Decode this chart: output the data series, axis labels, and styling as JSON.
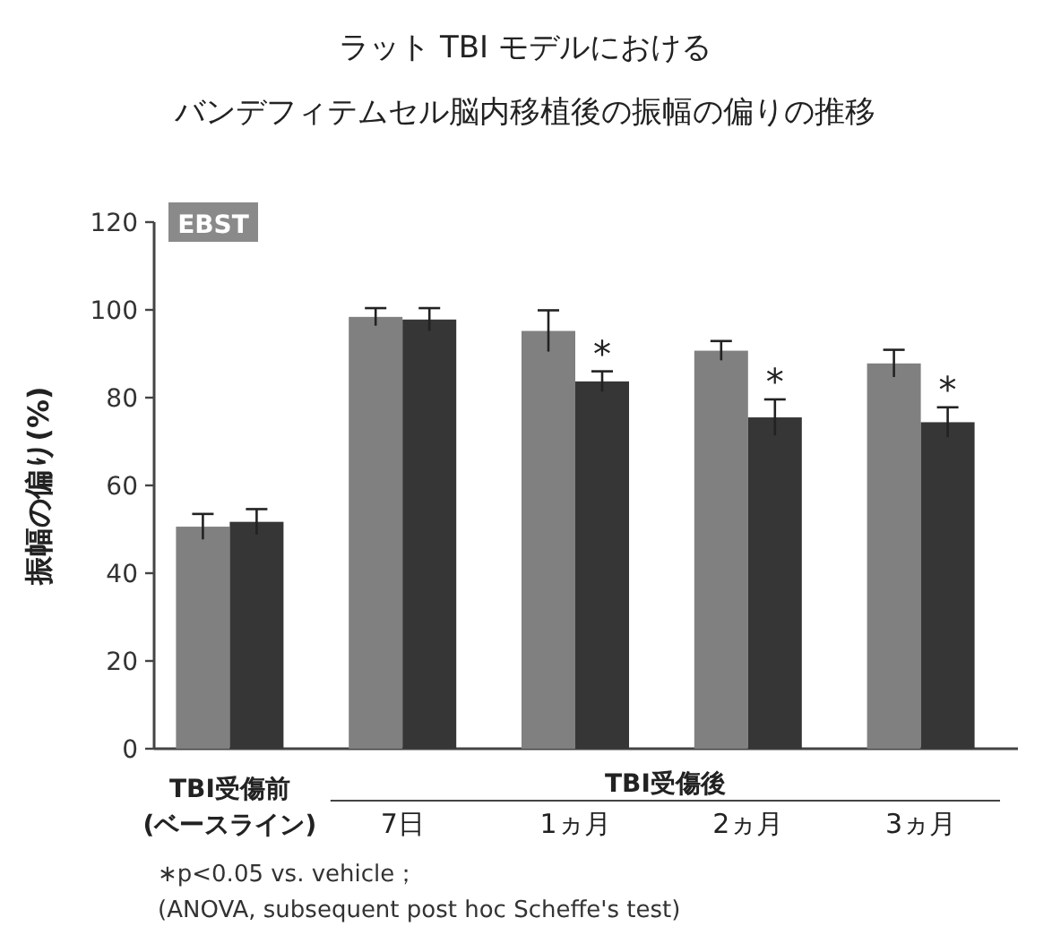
{
  "chart_data": {
    "type": "bar",
    "title": "ラット TBI モデルにおける",
    "subtitle": "バンデフィテムセル脳内移植後の振幅の偏りの推移",
    "ylabel": "振幅の偏り(%)",
    "categories": [
      "TBI受傷前\n(ベースライン)",
      "7日",
      "1ヵ月",
      "2ヵ月",
      "3ヵ月"
    ],
    "series": [
      {
        "color": "#808080",
        "values": [
          50.6,
          98.4,
          95.2,
          90.7,
          87.8
        ],
        "errors": [
          2.9,
          2.0,
          4.7,
          2.2,
          3.1
        ]
      },
      {
        "color": "#363636",
        "values": [
          51.7,
          97.8,
          83.7,
          75.5,
          74.4
        ],
        "errors": [
          2.9,
          2.6,
          2.3,
          4.1,
          3.4
        ]
      }
    ],
    "ylim": [
      0,
      120
    ],
    "yticks": [
      0,
      20,
      40,
      60,
      80,
      100,
      120
    ],
    "grid": false,
    "annotations": [
      "EBST",
      "TBI受傷後",
      "∗p<0.05 vs. vehicle；",
      "(ANOVA, subsequent post hoc Scheffe's test)",
      {
        "text": "*",
        "x": "1ヵ月",
        "y": 86.0
      },
      {
        "text": "*",
        "x": "2ヵ月",
        "y": 79.6
      },
      {
        "text": "*",
        "x": "3ヵ月",
        "y": 77.8
      }
    ]
  }
}
